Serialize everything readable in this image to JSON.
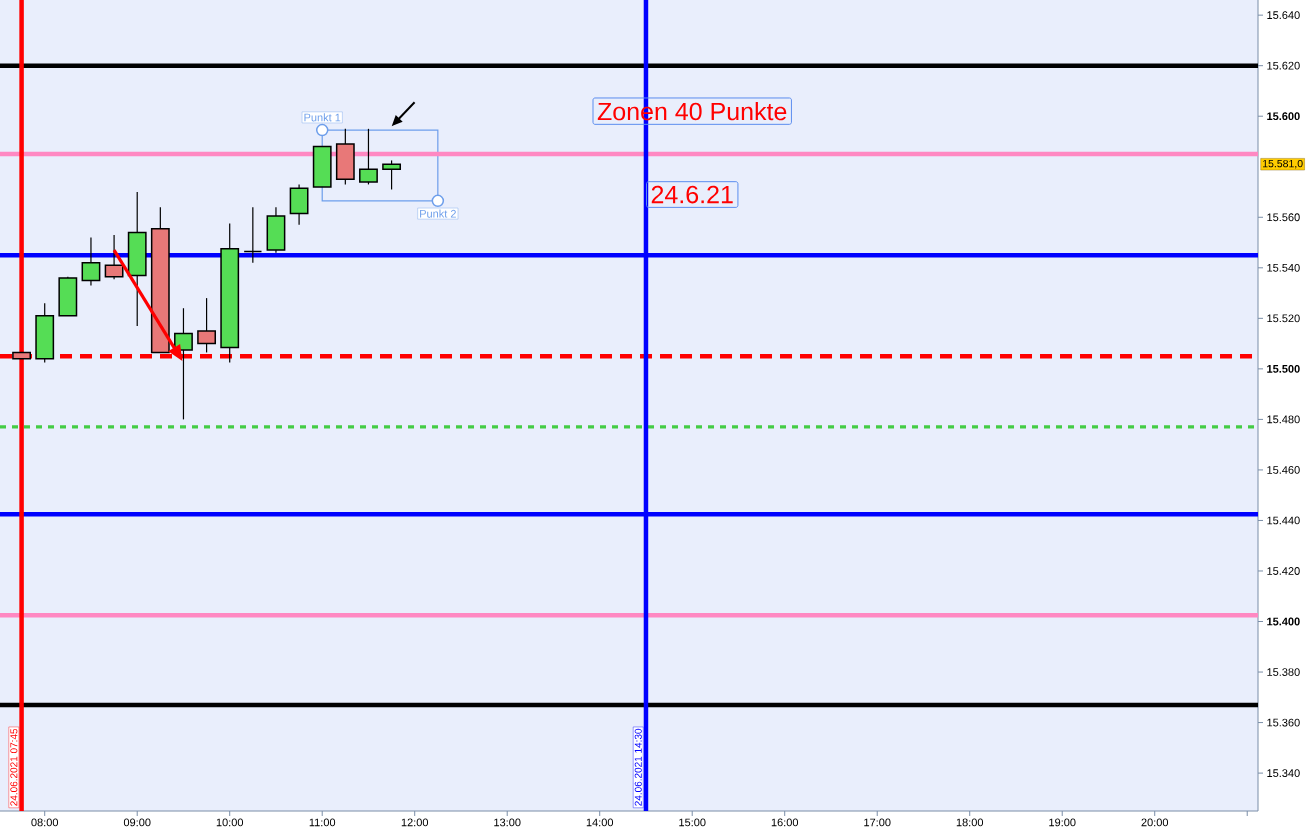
{
  "chart_data": {
    "type": "candlestick",
    "x": [
      "2021-06-24T07:45",
      "2021-06-24T08:00",
      "2021-06-24T08:15",
      "2021-06-24T08:30",
      "2021-06-24T08:45",
      "2021-06-24T09:00",
      "2021-06-24T09:15",
      "2021-06-24T09:30",
      "2021-06-24T09:45",
      "2021-06-24T10:00",
      "2021-06-24T10:15",
      "2021-06-24T10:30",
      "2021-06-24T10:45",
      "2021-06-24T11:00",
      "2021-06-24T11:15",
      "2021-06-24T11:30",
      "2021-06-24T11:45"
    ],
    "ohlc": [
      [
        15506.5,
        15506.5,
        15504,
        15504
      ],
      [
        15504,
        15526,
        15502.5,
        15521
      ],
      [
        15521,
        15536.5,
        15521,
        15536
      ],
      [
        15535,
        15552,
        15533,
        15542
      ],
      [
        15541,
        15553,
        15535.5,
        15536.5
      ],
      [
        15537,
        15570,
        15517,
        15554
      ],
      [
        15555.5,
        15564,
        15506.5,
        15506.5
      ],
      [
        15507.5,
        15524,
        15480,
        15514
      ],
      [
        15515,
        15528,
        15506.5,
        15510
      ],
      [
        15508.5,
        15557.5,
        15502.5,
        15547.5
      ],
      [
        15546.5,
        15564,
        15542,
        15546.5
      ],
      [
        15547,
        15564,
        15546,
        15560.5
      ],
      [
        15561.5,
        15573,
        15557,
        15571.5
      ],
      [
        15572,
        15588,
        15572,
        15588
      ],
      [
        15589,
        15595,
        15573,
        15575
      ],
      [
        15574,
        15595,
        15573,
        15579
      ],
      [
        15579,
        15582.5,
        15571,
        15581
      ]
    ],
    "colors": [
      "#e87878",
      "#55dd55",
      "#55dd55",
      "#55dd55",
      "#e87878",
      "#55dd55",
      "#e87878",
      "#55dd55",
      "#e87878",
      "#55dd55",
      "#000000",
      "#55dd55",
      "#55dd55",
      "#55dd55",
      "#e87878",
      "#55dd55",
      "#55dd55"
    ],
    "xlim": [
      "2021-06-24T07:31",
      "2021-06-24T21:07"
    ],
    "ylim": [
      15325,
      15646
    ],
    "xticks": [
      {
        "value": "2021-06-24T08:00",
        "label": "08:00"
      },
      {
        "value": "2021-06-24T09:00",
        "label": "09:00"
      },
      {
        "value": "2021-06-24T10:00",
        "label": "10:00"
      },
      {
        "value": "2021-06-24T11:00",
        "label": "11:00"
      },
      {
        "value": "2021-06-24T12:00",
        "label": "12:00"
      },
      {
        "value": "2021-06-24T13:00",
        "label": "13:00"
      },
      {
        "value": "2021-06-24T14:00",
        "label": "14:00"
      },
      {
        "value": "2021-06-24T15:00",
        "label": "15:00"
      },
      {
        "value": "2021-06-24T16:00",
        "label": "16:00"
      },
      {
        "value": "2021-06-24T17:00",
        "label": "17:00"
      },
      {
        "value": "2021-06-24T18:00",
        "label": "18:00"
      },
      {
        "value": "2021-06-24T19:00",
        "label": "19:00"
      },
      {
        "value": "2021-06-24T20:00",
        "label": "20:00"
      },
      {
        "value": "2021-06-24T21:00",
        "label": null
      }
    ],
    "yticks": [
      {
        "value": 15340,
        "label": "15.340"
      },
      {
        "value": 15360,
        "label": "15.360"
      },
      {
        "value": 15380,
        "label": "15.380"
      },
      {
        "value": 15400,
        "label": "**15.400**"
      },
      {
        "value": 15420,
        "label": "15.420"
      },
      {
        "value": 15440,
        "label": "15.440"
      },
      {
        "value": 15460,
        "label": "15.460"
      },
      {
        "value": 15480,
        "label": "15.480"
      },
      {
        "value": 15500,
        "label": "**15.500**"
      },
      {
        "value": 15520,
        "label": "15.520"
      },
      {
        "value": 15540,
        "label": "15.540"
      },
      {
        "value": 15560,
        "label": "15.560"
      },
      {
        "value": 15600,
        "label": "**15.600**"
      },
      {
        "value": 15620,
        "label": "15.620"
      },
      {
        "value": 15640,
        "label": "15.640"
      }
    ],
    "ref_lines": [
      {
        "axis": "y",
        "value": 15620,
        "color": "#000000"
      },
      {
        "axis": "y",
        "value": 15585,
        "color": "#ff88c2"
      },
      {
        "axis": "y",
        "value": 15545,
        "color": "#0000ff"
      },
      {
        "axis": "y",
        "value": 15505,
        "color": "#ff0000",
        "line_style": "dashed"
      },
      {
        "axis": "y",
        "value": 15477,
        "color": "#44cc44",
        "line_style": "dotted"
      },
      {
        "axis": "y",
        "value": 15442.5,
        "color": "#0000ff"
      },
      {
        "axis": "y",
        "value": 15402.5,
        "color": "#ff88c2"
      },
      {
        "axis": "y",
        "value": 15367,
        "color": "#000000"
      },
      {
        "axis": "x",
        "value": "2021-06-24T07:45",
        "label": "24.06.2021 07:45",
        "color": "#ff0000"
      },
      {
        "axis": "x",
        "value": "2021-06-24T14:30",
        "label": "24.06.2021 14:30",
        "color": "#0000ff"
      }
    ],
    "annotations": [
      "Zonen 40 Punkte",
      "24.6.21",
      "15.581,0",
      {
        "text": "Punkt 1",
        "x": "2021-06-24T11:00",
        "y": 15594.5
      },
      {
        "text": "Punkt 2",
        "x": "2021-06-24T12:15",
        "y": 15566.5
      }
    ]
  }
}
